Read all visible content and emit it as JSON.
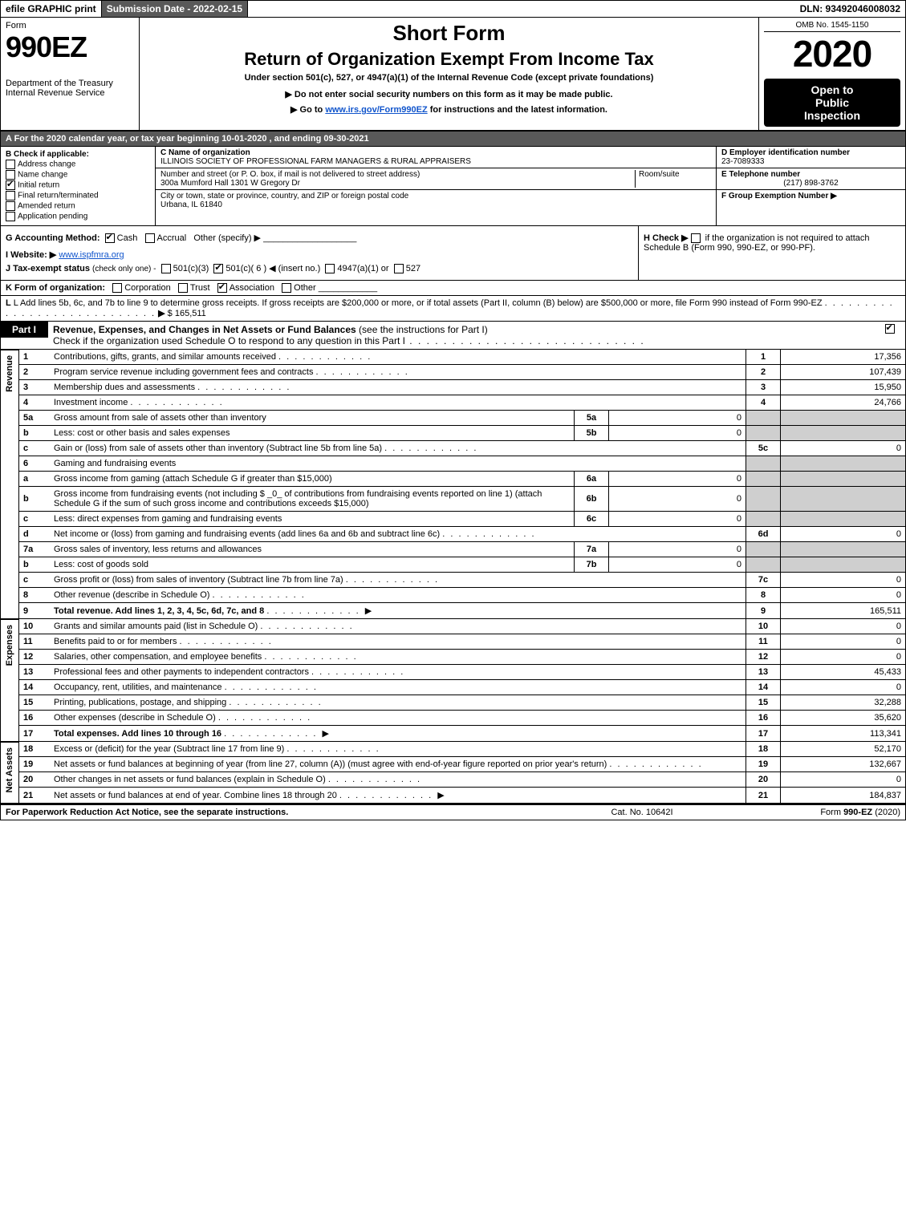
{
  "top_bar": {
    "print": "efile GRAPHIC print",
    "subdate": "Submission Date - 2022-02-15",
    "dln": "DLN: 93492046008032"
  },
  "header": {
    "form_word": "Form",
    "form_no": "990EZ",
    "short_form": "Short Form",
    "return_title": "Return of Organization Exempt From Income Tax",
    "under_sec": "Under section 501(c), 527, or 4947(a)(1) of the Internal Revenue Code (except private foundations)",
    "note1": "▶ Do not enter social security numbers on this form as it may be made public.",
    "note2_pre": "▶ Go to ",
    "note2_link": "www.irs.gov/Form990EZ",
    "note2_post": " for instructions and the latest information.",
    "dept": "Department of the Treasury",
    "service": "Internal Revenue Service",
    "omb": "OMB No. 1545-1150",
    "year": "2020",
    "open_pub_1": "Open to",
    "open_pub_2": "Public",
    "open_pub_3": "Inspection"
  },
  "line_a": "A  For the 2020 calendar year, or tax year beginning 10-01-2020 , and ending 09-30-2021",
  "box_b": {
    "title": "B  Check if applicable:",
    "items": [
      "Address change",
      "Name change",
      "Initial return",
      "Final return/terminated",
      "Amended return",
      "Application pending"
    ],
    "checked_index": 2
  },
  "box_c": {
    "name_label": "C Name of organization",
    "name": "ILLINOIS SOCIETY OF PROFESSIONAL FARM MANAGERS & RURAL APPRAISERS",
    "street_label": "Number and street (or P. O. box, if mail is not delivered to street address)",
    "room_label": "Room/suite",
    "street": "300a Mumford Hall 1301 W Gregory Dr",
    "city_label": "City or town, state or province, country, and ZIP or foreign postal code",
    "city": "Urbana, IL  61840"
  },
  "box_right": {
    "d_label": "D Employer identification number",
    "d_val": "23-7089333",
    "e_label": "E Telephone number",
    "e_val": "(217) 898-3762",
    "f_label": "F Group Exemption Number   ▶"
  },
  "line_g": {
    "label": "G Accounting Method:",
    "cash": "Cash",
    "accrual": "Accrual",
    "other": "Other (specify) ▶"
  },
  "line_h": {
    "text_pre": "H  Check ▶ ",
    "text_post": " if the organization is not required to attach Schedule B (Form 990, 990-EZ, or 990-PF)."
  },
  "line_i": {
    "label": "I Website: ▶",
    "url": "www.ispfmra.org"
  },
  "line_j": {
    "label": "J Tax-exempt status",
    "note": "(check only one) -",
    "opt1": "501(c)(3)",
    "opt2_pre": "501(c)( 6 ) ◀ (insert no.)",
    "opt3": "4947(a)(1) or",
    "opt4": "527"
  },
  "line_k": {
    "label": "K Form of organization:",
    "opts": [
      "Corporation",
      "Trust",
      "Association",
      "Other"
    ],
    "checked_index": 2
  },
  "line_l": {
    "text": "L Add lines 5b, 6c, and 7b to line 9 to determine gross receipts. If gross receipts are $200,000 or more, or if total assets (Part II, column (B) below) are $500,000 or more, file Form 990 instead of Form 990-EZ",
    "arrow": "▶",
    "value": "$ 165,511"
  },
  "part1": {
    "tab": "Part I",
    "title_bold": "Revenue, Expenses, and Changes in Net Assets or Fund Balances",
    "title_rest": " (see the instructions for Part I)",
    "check_note": "Check if the organization used Schedule O to respond to any question in this Part I",
    "checked": true
  },
  "revenue": {
    "side_label": "Revenue",
    "rows": [
      {
        "no": "1",
        "desc": "Contributions, gifts, grants, and similar amounts received",
        "ref": "1",
        "val": "17,356"
      },
      {
        "no": "2",
        "desc": "Program service revenue including government fees and contracts",
        "ref": "2",
        "val": "107,439"
      },
      {
        "no": "3",
        "desc": "Membership dues and assessments",
        "ref": "3",
        "val": "15,950"
      },
      {
        "no": "4",
        "desc": "Investment income",
        "ref": "4",
        "val": "24,766"
      },
      {
        "no": "5a",
        "desc": "Gross amount from sale of assets other than inventory",
        "miniref": "5a",
        "minival": "0"
      },
      {
        "no": "b",
        "desc": "Less: cost or other basis and sales expenses",
        "miniref": "5b",
        "minival": "0"
      },
      {
        "no": "c",
        "desc": "Gain or (loss) from sale of assets other than inventory (Subtract line 5b from line 5a)",
        "ref": "5c",
        "val": "0"
      },
      {
        "no": "6",
        "desc": "Gaming and fundraising events"
      },
      {
        "no": "a",
        "desc": "Gross income from gaming (attach Schedule G if greater than $15,000)",
        "miniref": "6a",
        "minival": "0"
      },
      {
        "no": "b",
        "desc": "Gross income from fundraising events (not including $ _0_ of contributions from fundraising events reported on line 1) (attach Schedule G if the sum of such gross income and contributions exceeds $15,000)",
        "miniref": "6b",
        "minival": "0"
      },
      {
        "no": "c",
        "desc": "Less: direct expenses from gaming and fundraising events",
        "miniref": "6c",
        "minival": "0"
      },
      {
        "no": "d",
        "desc": "Net income or (loss) from gaming and fundraising events (add lines 6a and 6b and subtract line 6c)",
        "ref": "6d",
        "val": "0"
      },
      {
        "no": "7a",
        "desc": "Gross sales of inventory, less returns and allowances",
        "miniref": "7a",
        "minival": "0"
      },
      {
        "no": "b",
        "desc": "Less: cost of goods sold",
        "miniref": "7b",
        "minival": "0"
      },
      {
        "no": "c",
        "desc": "Gross profit or (loss) from sales of inventory (Subtract line 7b from line 7a)",
        "ref": "7c",
        "val": "0"
      },
      {
        "no": "8",
        "desc": "Other revenue (describe in Schedule O)",
        "ref": "8",
        "val": "0"
      },
      {
        "no": "9",
        "desc": "Total revenue. Add lines 1, 2, 3, 4, 5c, 6d, 7c, and 8",
        "ref": "9",
        "val": "165,511",
        "arrow": true,
        "bold": true
      }
    ]
  },
  "expenses": {
    "side_label": "Expenses",
    "rows": [
      {
        "no": "10",
        "desc": "Grants and similar amounts paid (list in Schedule O)",
        "ref": "10",
        "val": "0"
      },
      {
        "no": "11",
        "desc": "Benefits paid to or for members",
        "ref": "11",
        "val": "0"
      },
      {
        "no": "12",
        "desc": "Salaries, other compensation, and employee benefits",
        "ref": "12",
        "val": "0"
      },
      {
        "no": "13",
        "desc": "Professional fees and other payments to independent contractors",
        "ref": "13",
        "val": "45,433"
      },
      {
        "no": "14",
        "desc": "Occupancy, rent, utilities, and maintenance",
        "ref": "14",
        "val": "0"
      },
      {
        "no": "15",
        "desc": "Printing, publications, postage, and shipping",
        "ref": "15",
        "val": "32,288"
      },
      {
        "no": "16",
        "desc": "Other expenses (describe in Schedule O)",
        "ref": "16",
        "val": "35,620"
      },
      {
        "no": "17",
        "desc": "Total expenses. Add lines 10 through 16",
        "ref": "17",
        "val": "113,341",
        "arrow": true,
        "bold": true
      }
    ]
  },
  "netassets": {
    "side_label": "Net Assets",
    "rows": [
      {
        "no": "18",
        "desc": "Excess or (deficit) for the year (Subtract line 17 from line 9)",
        "ref": "18",
        "val": "52,170"
      },
      {
        "no": "19",
        "desc": "Net assets or fund balances at beginning of year (from line 27, column (A)) (must agree with end-of-year figure reported on prior year's return)",
        "ref": "19",
        "val": "132,667"
      },
      {
        "no": "20",
        "desc": "Other changes in net assets or fund balances (explain in Schedule O)",
        "ref": "20",
        "val": "0"
      },
      {
        "no": "21",
        "desc": "Net assets or fund balances at end of year. Combine lines 18 through 20",
        "ref": "21",
        "val": "184,837",
        "arrow": true
      }
    ]
  },
  "footer": {
    "left": "For Paperwork Reduction Act Notice, see the separate instructions.",
    "mid": "Cat. No. 10642I",
    "right_pre": "Form ",
    "right_bold": "990-EZ",
    "right_post": " (2020)"
  }
}
